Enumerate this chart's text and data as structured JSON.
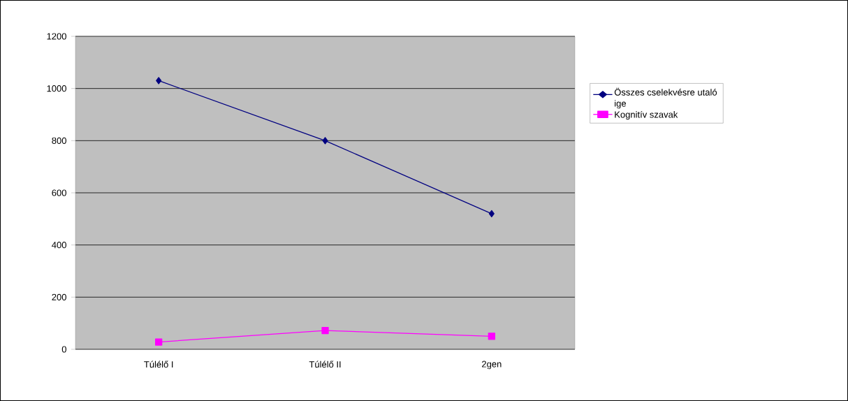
{
  "chart_data": {
    "type": "line",
    "categories": [
      "Túlélő I",
      "Túlélő II",
      "2gen"
    ],
    "series": [
      {
        "name": "Összes cselekvésre utaló ige",
        "color": "#000080",
        "marker": "diamond",
        "values": [
          1030,
          800,
          520
        ]
      },
      {
        "name": "Kognitív szavak",
        "color": "#ff00ff",
        "marker": "square",
        "values": [
          28,
          72,
          50
        ]
      }
    ],
    "ylim": [
      0,
      1200
    ],
    "yticks": [
      0,
      200,
      400,
      600,
      800,
      1000,
      1200
    ],
    "grid": "y",
    "legend": "right"
  }
}
